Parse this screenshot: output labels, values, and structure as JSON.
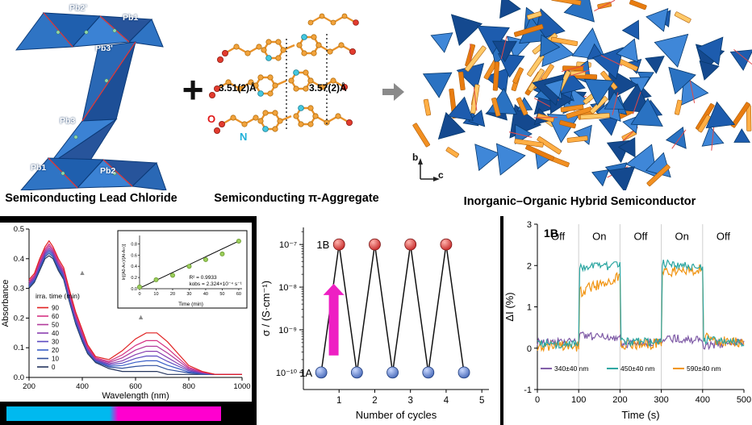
{
  "top": {
    "plus": "+",
    "panel1": {
      "caption": "Semiconducting Lead Chloride",
      "labels": [
        "Pb2'",
        "Pb1",
        "Pb3'",
        "Pb3",
        "Pb1",
        "Pb2"
      ]
    },
    "panel2": {
      "caption": "Semiconducting π-Aggregate",
      "dist1": "3.51(2)Å",
      "dist2": "3.57(2)Å",
      "atom_o": "O",
      "atom_n": "N"
    },
    "panel3": {
      "caption": "Inorganic–Organic Hybrid Semiconductor",
      "axis_b": "b",
      "axis_c": "c"
    }
  },
  "colors": {
    "cyan_bar": "#00b9ef",
    "magenta_bar": "#ff00cf"
  },
  "chart_data": [
    {
      "type": "line",
      "xlabel": "Wavelength (nm)",
      "ylabel": "Absorbance",
      "xlim": [
        200,
        1000
      ],
      "ylim": [
        0,
        0.5
      ],
      "xticks": [
        200,
        400,
        600,
        800,
        1000
      ],
      "yticks": [
        0.0,
        0.1,
        0.2,
        0.3,
        0.4,
        0.5
      ],
      "legend_title": "irra. time (min)",
      "x": [
        200,
        220,
        240,
        260,
        275,
        290,
        310,
        330,
        350,
        375,
        400,
        420,
        450,
        500,
        550,
        600,
        640,
        680,
        720,
        760,
        800,
        850,
        900,
        950,
        1000
      ],
      "series": [
        {
          "name": "90",
          "color": "#e02020",
          "values": [
            0.33,
            0.35,
            0.4,
            0.44,
            0.46,
            0.44,
            0.4,
            0.37,
            0.3,
            0.22,
            0.16,
            0.11,
            0.07,
            0.06,
            0.09,
            0.13,
            0.15,
            0.15,
            0.12,
            0.08,
            0.04,
            0.02,
            0.01,
            0.01,
            0.01
          ]
        },
        {
          "name": "60",
          "color": "#d63384",
          "values": [
            0.324,
            0.344,
            0.392,
            0.432,
            0.45,
            0.432,
            0.392,
            0.362,
            0.292,
            0.212,
            0.152,
            0.104,
            0.066,
            0.054,
            0.076,
            0.108,
            0.124,
            0.124,
            0.098,
            0.066,
            0.034,
            0.018,
            0.01,
            0.01,
            0.01
          ]
        },
        {
          "name": "50",
          "color": "#b23a9c",
          "values": [
            0.32,
            0.34,
            0.386,
            0.426,
            0.443,
            0.426,
            0.386,
            0.356,
            0.286,
            0.206,
            0.146,
            0.1,
            0.063,
            0.05,
            0.066,
            0.092,
            0.105,
            0.105,
            0.082,
            0.056,
            0.03,
            0.017,
            0.01,
            0.01,
            0.01
          ]
        },
        {
          "name": "40",
          "color": "#8a3fb0",
          "values": [
            0.316,
            0.336,
            0.381,
            0.421,
            0.436,
            0.421,
            0.381,
            0.351,
            0.281,
            0.201,
            0.141,
            0.096,
            0.06,
            0.046,
            0.056,
            0.077,
            0.088,
            0.088,
            0.067,
            0.046,
            0.026,
            0.015,
            0.01,
            0.01,
            0.01
          ]
        },
        {
          "name": "30",
          "color": "#5b49c0",
          "values": [
            0.312,
            0.332,
            0.376,
            0.416,
            0.43,
            0.416,
            0.376,
            0.346,
            0.276,
            0.196,
            0.136,
            0.092,
            0.058,
            0.042,
            0.048,
            0.064,
            0.072,
            0.072,
            0.054,
            0.038,
            0.022,
            0.014,
            0.01,
            0.01,
            0.01
          ]
        },
        {
          "name": "20",
          "color": "#3a5fc8",
          "values": [
            0.308,
            0.328,
            0.371,
            0.411,
            0.424,
            0.411,
            0.371,
            0.341,
            0.271,
            0.191,
            0.131,
            0.088,
            0.056,
            0.038,
            0.04,
            0.051,
            0.056,
            0.056,
            0.041,
            0.03,
            0.018,
            0.013,
            0.01,
            0.01,
            0.01
          ]
        },
        {
          "name": "10",
          "color": "#2f4f9e",
          "values": [
            0.305,
            0.325,
            0.366,
            0.406,
            0.418,
            0.406,
            0.366,
            0.336,
            0.266,
            0.186,
            0.126,
            0.085,
            0.053,
            0.035,
            0.031,
            0.037,
            0.04,
            0.04,
            0.027,
            0.021,
            0.015,
            0.011,
            0.01,
            0.01,
            0.01
          ]
        },
        {
          "name": "0",
          "color": "#25355e",
          "values": [
            0.3,
            0.32,
            0.36,
            0.4,
            0.41,
            0.4,
            0.36,
            0.33,
            0.26,
            0.18,
            0.12,
            0.08,
            0.05,
            0.03,
            0.02,
            0.02,
            0.02,
            0.02,
            0.01,
            0.01,
            0.01,
            0.01,
            0.01,
            0.01,
            0.01
          ]
        }
      ],
      "annotations": [
        {
          "x": 400,
          "y": 0.345,
          "glyph": "▲"
        },
        {
          "x": 620,
          "y": 0.195,
          "glyph": "▲"
        }
      ]
    },
    {
      "type": "scatter",
      "xlabel": "Time (min)",
      "ylabel": "ln[(A0-A∞)/(At-A∞)]",
      "xlim": [
        0,
        62
      ],
      "ylim": [
        0,
        0.95
      ],
      "xticks": [
        0,
        10,
        20,
        30,
        40,
        50,
        60
      ],
      "yticks": [
        0.0,
        0.2,
        0.4,
        0.6,
        0.8
      ],
      "x": [
        0,
        10,
        20,
        30,
        40,
        50,
        60
      ],
      "y": [
        0.03,
        0.16,
        0.24,
        0.4,
        0.52,
        0.62,
        0.85
      ],
      "fit": {
        "x0": 0,
        "y0": 0.01,
        "x1": 60,
        "y1": 0.85
      },
      "r2_label": "R² = 0.9933",
      "k_label": "kobs = 2.324×10⁻⁴ s⁻¹",
      "point_color": "#9acd5a"
    },
    {
      "type": "line",
      "xlabel": "Number of cycles",
      "ylabel": "σ / (S·cm⁻¹)",
      "xlim": [
        0,
        5.2
      ],
      "xticks": [
        1,
        2,
        3,
        4,
        5
      ],
      "ylog": true,
      "ylim_exp": [
        -10.4,
        -6.6
      ],
      "yticks": [
        {
          "v": 1e-10,
          "label": "10⁻¹⁰"
        },
        {
          "v": 1e-09,
          "label": "10⁻⁹"
        },
        {
          "v": 1e-08,
          "label": "10⁻⁸"
        },
        {
          "v": 1e-07,
          "label": "10⁻⁷"
        }
      ],
      "x": [
        0.5,
        1,
        1.5,
        2,
        2.5,
        3,
        3.5,
        4,
        4.5
      ],
      "y": [
        1e-10,
        1e-07,
        1e-10,
        1e-07,
        1e-10,
        1e-07,
        1e-10,
        1e-07,
        1e-10
      ],
      "state_labels": {
        "high": "1B",
        "low": "1A"
      },
      "high_color": "#c62828",
      "low_color": "#4668b8",
      "arrow_color": "#ee1fc3"
    },
    {
      "type": "line",
      "title_label": "1B",
      "xlabel": "Time (s)",
      "ylabel": "ΔI (%)",
      "xlim": [
        0,
        500
      ],
      "ylim": [
        -1,
        3
      ],
      "xticks": [
        0,
        100,
        200,
        300,
        400,
        500
      ],
      "yticks": [
        -1,
        0,
        1,
        2,
        3
      ],
      "region_bounds": [
        100,
        200,
        300,
        400
      ],
      "regions": [
        {
          "t": 50,
          "label": "Off"
        },
        {
          "t": 150,
          "label": "On"
        },
        {
          "t": 250,
          "label": "Off"
        },
        {
          "t": 350,
          "label": "On"
        },
        {
          "t": 450,
          "label": "Off"
        }
      ],
      "draw_order": [
        0,
        2,
        1
      ],
      "series": [
        {
          "name": "340±40 nm",
          "color": "#7e5aa6",
          "amp": 0.1,
          "segments": [
            [
              0,
              100,
              0.15,
              0.15
            ],
            [
              100,
              200,
              0.3,
              0.25
            ],
            [
              200,
              300,
              0.1,
              0.15
            ],
            [
              300,
              400,
              0.25,
              0.2
            ],
            [
              400,
              500,
              0.05,
              0.15
            ]
          ]
        },
        {
          "name": "450±40 nm",
          "color": "#2aa5a0",
          "amp": 0.1,
          "segments": [
            [
              0,
              100,
              0.1,
              0.1
            ],
            [
              100,
              200,
              1.95,
              2.0
            ],
            [
              200,
              300,
              0.15,
              0.15
            ],
            [
              300,
              400,
              2.05,
              1.95
            ],
            [
              400,
              500,
              0.2,
              0.15
            ]
          ]
        },
        {
          "name": "590±40 nm",
          "color": "#f1930f",
          "amp": 0.13,
          "segments": [
            [
              0,
              100,
              0.05,
              0.05
            ],
            [
              100,
              200,
              1.35,
              1.75
            ],
            [
              200,
              300,
              0.1,
              0.1
            ],
            [
              300,
              400,
              1.85,
              1.9
            ],
            [
              400,
              500,
              0.25,
              0.1
            ]
          ]
        }
      ]
    }
  ]
}
